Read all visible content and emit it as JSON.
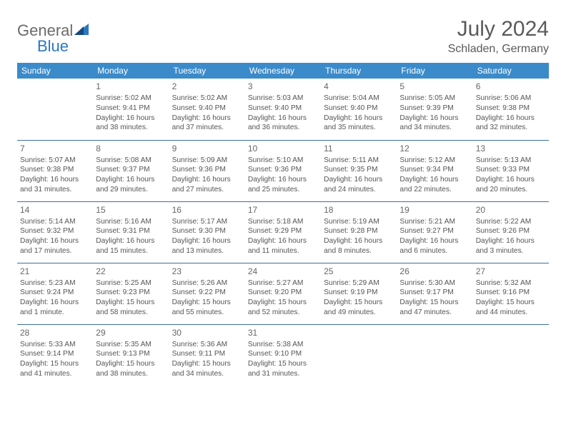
{
  "brand": {
    "part1": "General",
    "part2": "Blue"
  },
  "title": "July 2024",
  "location": "Schladen, Germany",
  "header_bg": "#3b8bca",
  "header_fg": "#ffffff",
  "border_color": "#3b6fa0",
  "text_color": "#555555",
  "weekdays": [
    "Sunday",
    "Monday",
    "Tuesday",
    "Wednesday",
    "Thursday",
    "Friday",
    "Saturday"
  ],
  "weeks": [
    [
      {
        "blank": true
      },
      {
        "d": "1",
        "sr": "Sunrise: 5:02 AM",
        "ss": "Sunset: 9:41 PM",
        "dl1": "Daylight: 16 hours",
        "dl2": "and 38 minutes."
      },
      {
        "d": "2",
        "sr": "Sunrise: 5:02 AM",
        "ss": "Sunset: 9:40 PM",
        "dl1": "Daylight: 16 hours",
        "dl2": "and 37 minutes."
      },
      {
        "d": "3",
        "sr": "Sunrise: 5:03 AM",
        "ss": "Sunset: 9:40 PM",
        "dl1": "Daylight: 16 hours",
        "dl2": "and 36 minutes."
      },
      {
        "d": "4",
        "sr": "Sunrise: 5:04 AM",
        "ss": "Sunset: 9:40 PM",
        "dl1": "Daylight: 16 hours",
        "dl2": "and 35 minutes."
      },
      {
        "d": "5",
        "sr": "Sunrise: 5:05 AM",
        "ss": "Sunset: 9:39 PM",
        "dl1": "Daylight: 16 hours",
        "dl2": "and 34 minutes."
      },
      {
        "d": "6",
        "sr": "Sunrise: 5:06 AM",
        "ss": "Sunset: 9:38 PM",
        "dl1": "Daylight: 16 hours",
        "dl2": "and 32 minutes."
      }
    ],
    [
      {
        "d": "7",
        "sr": "Sunrise: 5:07 AM",
        "ss": "Sunset: 9:38 PM",
        "dl1": "Daylight: 16 hours",
        "dl2": "and 31 minutes."
      },
      {
        "d": "8",
        "sr": "Sunrise: 5:08 AM",
        "ss": "Sunset: 9:37 PM",
        "dl1": "Daylight: 16 hours",
        "dl2": "and 29 minutes."
      },
      {
        "d": "9",
        "sr": "Sunrise: 5:09 AM",
        "ss": "Sunset: 9:36 PM",
        "dl1": "Daylight: 16 hours",
        "dl2": "and 27 minutes."
      },
      {
        "d": "10",
        "sr": "Sunrise: 5:10 AM",
        "ss": "Sunset: 9:36 PM",
        "dl1": "Daylight: 16 hours",
        "dl2": "and 25 minutes."
      },
      {
        "d": "11",
        "sr": "Sunrise: 5:11 AM",
        "ss": "Sunset: 9:35 PM",
        "dl1": "Daylight: 16 hours",
        "dl2": "and 24 minutes."
      },
      {
        "d": "12",
        "sr": "Sunrise: 5:12 AM",
        "ss": "Sunset: 9:34 PM",
        "dl1": "Daylight: 16 hours",
        "dl2": "and 22 minutes."
      },
      {
        "d": "13",
        "sr": "Sunrise: 5:13 AM",
        "ss": "Sunset: 9:33 PM",
        "dl1": "Daylight: 16 hours",
        "dl2": "and 20 minutes."
      }
    ],
    [
      {
        "d": "14",
        "sr": "Sunrise: 5:14 AM",
        "ss": "Sunset: 9:32 PM",
        "dl1": "Daylight: 16 hours",
        "dl2": "and 17 minutes."
      },
      {
        "d": "15",
        "sr": "Sunrise: 5:16 AM",
        "ss": "Sunset: 9:31 PM",
        "dl1": "Daylight: 16 hours",
        "dl2": "and 15 minutes."
      },
      {
        "d": "16",
        "sr": "Sunrise: 5:17 AM",
        "ss": "Sunset: 9:30 PM",
        "dl1": "Daylight: 16 hours",
        "dl2": "and 13 minutes."
      },
      {
        "d": "17",
        "sr": "Sunrise: 5:18 AM",
        "ss": "Sunset: 9:29 PM",
        "dl1": "Daylight: 16 hours",
        "dl2": "and 11 minutes."
      },
      {
        "d": "18",
        "sr": "Sunrise: 5:19 AM",
        "ss": "Sunset: 9:28 PM",
        "dl1": "Daylight: 16 hours",
        "dl2": "and 8 minutes."
      },
      {
        "d": "19",
        "sr": "Sunrise: 5:21 AM",
        "ss": "Sunset: 9:27 PM",
        "dl1": "Daylight: 16 hours",
        "dl2": "and 6 minutes."
      },
      {
        "d": "20",
        "sr": "Sunrise: 5:22 AM",
        "ss": "Sunset: 9:26 PM",
        "dl1": "Daylight: 16 hours",
        "dl2": "and 3 minutes."
      }
    ],
    [
      {
        "d": "21",
        "sr": "Sunrise: 5:23 AM",
        "ss": "Sunset: 9:24 PM",
        "dl1": "Daylight: 16 hours",
        "dl2": "and 1 minute."
      },
      {
        "d": "22",
        "sr": "Sunrise: 5:25 AM",
        "ss": "Sunset: 9:23 PM",
        "dl1": "Daylight: 15 hours",
        "dl2": "and 58 minutes."
      },
      {
        "d": "23",
        "sr": "Sunrise: 5:26 AM",
        "ss": "Sunset: 9:22 PM",
        "dl1": "Daylight: 15 hours",
        "dl2": "and 55 minutes."
      },
      {
        "d": "24",
        "sr": "Sunrise: 5:27 AM",
        "ss": "Sunset: 9:20 PM",
        "dl1": "Daylight: 15 hours",
        "dl2": "and 52 minutes."
      },
      {
        "d": "25",
        "sr": "Sunrise: 5:29 AM",
        "ss": "Sunset: 9:19 PM",
        "dl1": "Daylight: 15 hours",
        "dl2": "and 49 minutes."
      },
      {
        "d": "26",
        "sr": "Sunrise: 5:30 AM",
        "ss": "Sunset: 9:17 PM",
        "dl1": "Daylight: 15 hours",
        "dl2": "and 47 minutes."
      },
      {
        "d": "27",
        "sr": "Sunrise: 5:32 AM",
        "ss": "Sunset: 9:16 PM",
        "dl1": "Daylight: 15 hours",
        "dl2": "and 44 minutes."
      }
    ],
    [
      {
        "d": "28",
        "sr": "Sunrise: 5:33 AM",
        "ss": "Sunset: 9:14 PM",
        "dl1": "Daylight: 15 hours",
        "dl2": "and 41 minutes."
      },
      {
        "d": "29",
        "sr": "Sunrise: 5:35 AM",
        "ss": "Sunset: 9:13 PM",
        "dl1": "Daylight: 15 hours",
        "dl2": "and 38 minutes."
      },
      {
        "d": "30",
        "sr": "Sunrise: 5:36 AM",
        "ss": "Sunset: 9:11 PM",
        "dl1": "Daylight: 15 hours",
        "dl2": "and 34 minutes."
      },
      {
        "d": "31",
        "sr": "Sunrise: 5:38 AM",
        "ss": "Sunset: 9:10 PM",
        "dl1": "Daylight: 15 hours",
        "dl2": "and 31 minutes."
      },
      {
        "blank": true
      },
      {
        "blank": true
      },
      {
        "blank": true
      }
    ]
  ]
}
